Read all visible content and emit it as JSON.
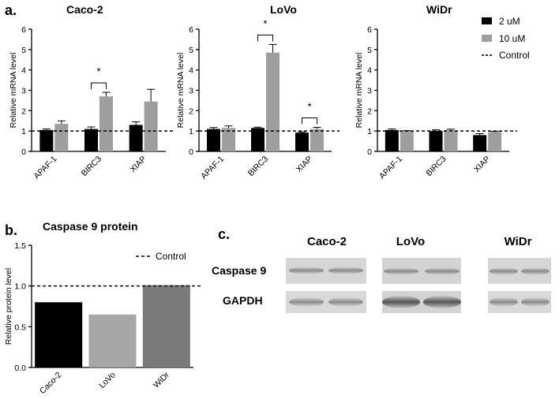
{
  "panel_labels": [
    "a.",
    "b.",
    "c."
  ],
  "legend": {
    "items": [
      "2 uM",
      "10 uM",
      "Control"
    ]
  },
  "chart_data": [
    {
      "type": "bar",
      "title": "Caco-2",
      "ylabel": "Relative mRNA level",
      "categories": [
        "APAF-1",
        "BIRC3",
        "XIAP"
      ],
      "ylim": [
        0,
        6
      ],
      "yticks": [
        0,
        1,
        2,
        3,
        4,
        5,
        6
      ],
      "control_line": 1,
      "series": [
        {
          "name": "2 uM",
          "values": [
            1.05,
            1.1,
            1.3
          ],
          "errors": [
            0.05,
            0.1,
            0.15
          ],
          "color": "#000000"
        },
        {
          "name": "10 uM",
          "values": [
            1.35,
            2.7,
            2.45
          ],
          "errors": [
            0.15,
            0.2,
            0.6
          ],
          "color": "#9e9e9e"
        }
      ],
      "significance": [
        {
          "category": "BIRC3",
          "label": "*"
        }
      ]
    },
    {
      "type": "bar",
      "title": "LoVo",
      "ylabel": "Relative mRNA level",
      "categories": [
        "APAF-1",
        "BIRC3",
        "XIAP"
      ],
      "ylim": [
        0,
        6
      ],
      "yticks": [
        0,
        1,
        2,
        3,
        4,
        5,
        6
      ],
      "control_line": 1,
      "series": [
        {
          "name": "2 uM",
          "values": [
            1.1,
            1.15,
            0.92
          ],
          "errors": [
            0.07,
            0.04,
            0.04
          ],
          "color": "#000000"
        },
        {
          "name": "10 uM",
          "values": [
            1.15,
            4.85,
            1.1
          ],
          "errors": [
            0.1,
            0.4,
            0.08
          ],
          "color": "#9e9e9e"
        }
      ],
      "significance": [
        {
          "category": "BIRC3",
          "label": "*"
        },
        {
          "category": "XIAP",
          "label": "*"
        }
      ]
    },
    {
      "type": "bar",
      "title": "WiDr",
      "ylabel": "Relative mRNA level",
      "categories": [
        "APAF-1",
        "BIRC3",
        "XIAP"
      ],
      "ylim": [
        0,
        6
      ],
      "yticks": [
        0,
        1,
        2,
        3,
        4,
        5,
        6
      ],
      "control_line": 1,
      "series": [
        {
          "name": "2 uM",
          "values": [
            1.05,
            1.0,
            0.8
          ],
          "errors": [
            0.05,
            0.06,
            0.07
          ],
          "color": "#000000"
        },
        {
          "name": "10 uM",
          "values": [
            1.0,
            1.05,
            0.95
          ],
          "errors": [
            0.02,
            0.04,
            0.03
          ],
          "color": "#9e9e9e"
        }
      ],
      "significance": []
    },
    {
      "type": "bar",
      "title": "Caspase 9 protein",
      "ylabel": "Relative protein level",
      "categories": [
        "Caco-2",
        "LoVo",
        "WiDr"
      ],
      "ylim": [
        0,
        1.5
      ],
      "yticks": [
        0.0,
        0.5,
        1.0,
        1.5
      ],
      "ytick_labels": [
        "0.0",
        "0.5",
        "1.0",
        "1.5"
      ],
      "control_line": 1,
      "control_label": "Control",
      "values": [
        0.8,
        0.65,
        1.01
      ],
      "colors": [
        "#000000",
        "#a6a6a6",
        "#7a7a7a"
      ]
    }
  ],
  "blot": {
    "columns": [
      "Caco-2",
      "LoVo",
      "WiDr"
    ],
    "rows": [
      "Caspase 9",
      "GAPDH"
    ]
  }
}
